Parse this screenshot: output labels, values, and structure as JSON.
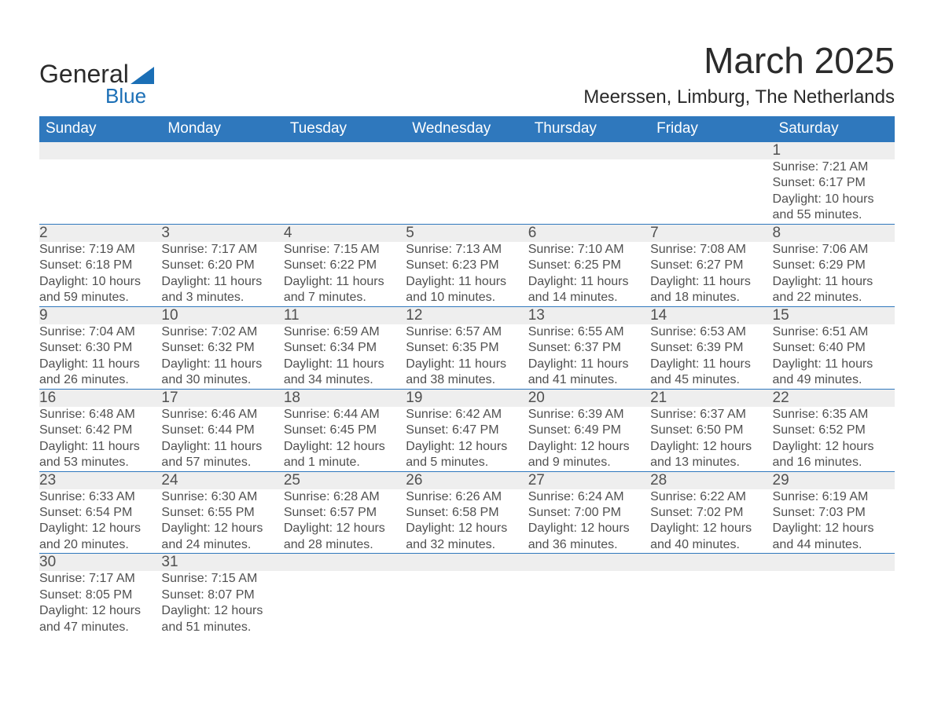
{
  "brand": {
    "line1": "General",
    "line2": "Blue"
  },
  "title": "March 2025",
  "location": "Meerssen, Limburg, The Netherlands",
  "colors": {
    "header_bg": "#2f78bd",
    "header_text": "#ffffff",
    "daynum_bg": "#eeeeee",
    "text": "#505050",
    "rule": "#2f78bd",
    "brand_dark": "#2b2b2b",
    "brand_blue": "#1b6fb6"
  },
  "fonts": {
    "title_pt": 46,
    "location_pt": 24,
    "header_pt": 19,
    "daynum_pt": 19,
    "body_pt": 16
  },
  "calendar": {
    "columns": [
      "Sunday",
      "Monday",
      "Tuesday",
      "Wednesday",
      "Thursday",
      "Friday",
      "Saturday"
    ],
    "weeks": [
      [
        null,
        null,
        null,
        null,
        null,
        null,
        {
          "n": "1",
          "sr": "7:21 AM",
          "ss": "6:17 PM",
          "dl": "10 hours and 55 minutes."
        }
      ],
      [
        {
          "n": "2",
          "sr": "7:19 AM",
          "ss": "6:18 PM",
          "dl": "10 hours and 59 minutes."
        },
        {
          "n": "3",
          "sr": "7:17 AM",
          "ss": "6:20 PM",
          "dl": "11 hours and 3 minutes."
        },
        {
          "n": "4",
          "sr": "7:15 AM",
          "ss": "6:22 PM",
          "dl": "11 hours and 7 minutes."
        },
        {
          "n": "5",
          "sr": "7:13 AM",
          "ss": "6:23 PM",
          "dl": "11 hours and 10 minutes."
        },
        {
          "n": "6",
          "sr": "7:10 AM",
          "ss": "6:25 PM",
          "dl": "11 hours and 14 minutes."
        },
        {
          "n": "7",
          "sr": "7:08 AM",
          "ss": "6:27 PM",
          "dl": "11 hours and 18 minutes."
        },
        {
          "n": "8",
          "sr": "7:06 AM",
          "ss": "6:29 PM",
          "dl": "11 hours and 22 minutes."
        }
      ],
      [
        {
          "n": "9",
          "sr": "7:04 AM",
          "ss": "6:30 PM",
          "dl": "11 hours and 26 minutes."
        },
        {
          "n": "10",
          "sr": "7:02 AM",
          "ss": "6:32 PM",
          "dl": "11 hours and 30 minutes."
        },
        {
          "n": "11",
          "sr": "6:59 AM",
          "ss": "6:34 PM",
          "dl": "11 hours and 34 minutes."
        },
        {
          "n": "12",
          "sr": "6:57 AM",
          "ss": "6:35 PM",
          "dl": "11 hours and 38 minutes."
        },
        {
          "n": "13",
          "sr": "6:55 AM",
          "ss": "6:37 PM",
          "dl": "11 hours and 41 minutes."
        },
        {
          "n": "14",
          "sr": "6:53 AM",
          "ss": "6:39 PM",
          "dl": "11 hours and 45 minutes."
        },
        {
          "n": "15",
          "sr": "6:51 AM",
          "ss": "6:40 PM",
          "dl": "11 hours and 49 minutes."
        }
      ],
      [
        {
          "n": "16",
          "sr": "6:48 AM",
          "ss": "6:42 PM",
          "dl": "11 hours and 53 minutes."
        },
        {
          "n": "17",
          "sr": "6:46 AM",
          "ss": "6:44 PM",
          "dl": "11 hours and 57 minutes."
        },
        {
          "n": "18",
          "sr": "6:44 AM",
          "ss": "6:45 PM",
          "dl": "12 hours and 1 minute."
        },
        {
          "n": "19",
          "sr": "6:42 AM",
          "ss": "6:47 PM",
          "dl": "12 hours and 5 minutes."
        },
        {
          "n": "20",
          "sr": "6:39 AM",
          "ss": "6:49 PM",
          "dl": "12 hours and 9 minutes."
        },
        {
          "n": "21",
          "sr": "6:37 AM",
          "ss": "6:50 PM",
          "dl": "12 hours and 13 minutes."
        },
        {
          "n": "22",
          "sr": "6:35 AM",
          "ss": "6:52 PM",
          "dl": "12 hours and 16 minutes."
        }
      ],
      [
        {
          "n": "23",
          "sr": "6:33 AM",
          "ss": "6:54 PM",
          "dl": "12 hours and 20 minutes."
        },
        {
          "n": "24",
          "sr": "6:30 AM",
          "ss": "6:55 PM",
          "dl": "12 hours and 24 minutes."
        },
        {
          "n": "25",
          "sr": "6:28 AM",
          "ss": "6:57 PM",
          "dl": "12 hours and 28 minutes."
        },
        {
          "n": "26",
          "sr": "6:26 AM",
          "ss": "6:58 PM",
          "dl": "12 hours and 32 minutes."
        },
        {
          "n": "27",
          "sr": "6:24 AM",
          "ss": "7:00 PM",
          "dl": "12 hours and 36 minutes."
        },
        {
          "n": "28",
          "sr": "6:22 AM",
          "ss": "7:02 PM",
          "dl": "12 hours and 40 minutes."
        },
        {
          "n": "29",
          "sr": "6:19 AM",
          "ss": "7:03 PM",
          "dl": "12 hours and 44 minutes."
        }
      ],
      [
        {
          "n": "30",
          "sr": "7:17 AM",
          "ss": "8:05 PM",
          "dl": "12 hours and 47 minutes."
        },
        {
          "n": "31",
          "sr": "7:15 AM",
          "ss": "8:07 PM",
          "dl": "12 hours and 51 minutes."
        },
        null,
        null,
        null,
        null,
        null
      ]
    ],
    "labels": {
      "sunrise": "Sunrise:",
      "sunset": "Sunset:",
      "daylight": "Daylight:"
    }
  }
}
